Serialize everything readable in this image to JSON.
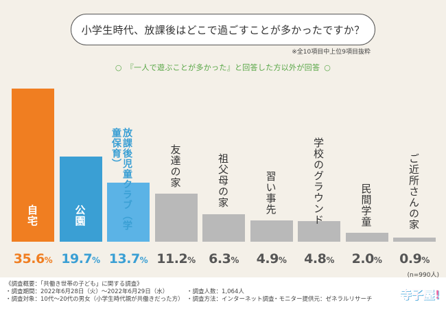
{
  "title": "小学生時代、放課後はどこで過ごすことが多かったですか？",
  "note": "※全10項目中上位9項目抜粋",
  "subtitle": "『一人で遊ぶことが多かった』と回答した方以外が回答",
  "subtitle_bullet": "○",
  "n_note": "(n=990人)",
  "colors": {
    "orange": "#f07e21",
    "blue": "#3a9fd4",
    "lightblue": "#5bb3e6",
    "gray": "#b9b9b9",
    "green": "#57a645"
  },
  "chart_data": {
    "type": "bar",
    "title": "小学生時代、放課後はどこで過ごすことが多かったですか？",
    "categories": [
      "自宅",
      "公園",
      "放課後児童クラブ（学童保育）",
      "友達の家",
      "祖父母の家",
      "習い事先",
      "学校のグラウンド",
      "民間学童",
      "ご近所さんの家"
    ],
    "values": [
      35.6,
      19.7,
      13.7,
      11.2,
      6.3,
      4.9,
      4.8,
      2.0,
      0.9
    ],
    "labels": [
      "35.6%",
      "19.7%",
      "13.7%",
      "11.2%",
      "6.3%",
      "4.9%",
      "4.8%",
      "2.0%",
      "0.9%"
    ],
    "unit": "%",
    "xlabel": "",
    "ylabel": "",
    "ylim": [
      0,
      36
    ]
  },
  "footer": {
    "survey_title": "《調査概要：「共働き世帯の子ども」に関する調査》",
    "period": "・調査期間：2022年6月28日（火）～2022年6月29日（水）",
    "target": "・調査対象：10代～20代の男女（小学生時代親が共働きだった方）",
    "count": "・調査人数：1,064人",
    "method": "・調査方法：インターネット調査",
    "provider": "・モニター提供元：ゼネラルリサーチ"
  },
  "logo": {
    "text": "寺子屋!"
  }
}
